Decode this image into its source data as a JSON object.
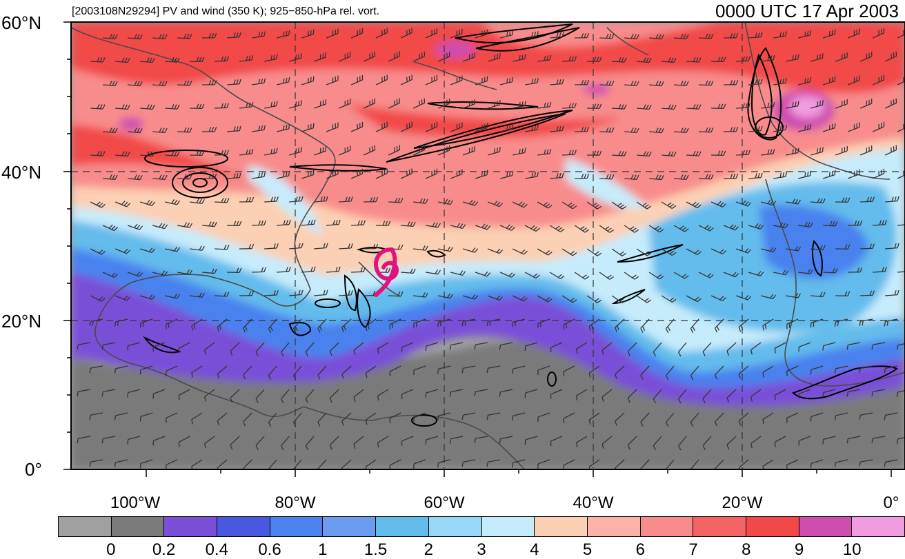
{
  "titles": {
    "left": "[2003108N29294] PV and wind (350 K); 925−850-hPa rel. vort.",
    "right": "0000 UTC 17 Apr 2003"
  },
  "axes": {
    "lat_labels": [
      "60°N",
      "40°N",
      "20°N",
      "0°"
    ],
    "lon_labels": [
      "100°W",
      "80°W",
      "60°W",
      "40°W",
      "20°W",
      "0°"
    ]
  },
  "colorbar": {
    "labels": [
      "0",
      "0.2",
      "0.4",
      "0.6",
      "1",
      "1.5",
      "2",
      "3",
      "4",
      "5",
      "6",
      "7",
      "8",
      "9",
      "10"
    ],
    "colors": [
      "#a0a0a0",
      "#7a7a7a",
      "#7a50d8",
      "#4858e0",
      "#4a82ee",
      "#6a9cf0",
      "#64bcec",
      "#96d8f6",
      "#c6ecfc",
      "#fcd0b4",
      "#fcb2a8",
      "#f88c8c",
      "#f46464",
      "#f24848",
      "#ce4eb0",
      "#f29ce0"
    ]
  },
  "map": {
    "palette": {
      "gray_light": "#a0a0a0",
      "gray_dark": "#7a7a7a",
      "purple": "#7a50d8",
      "blue": "#4a82ee",
      "sky": "#64bcec",
      "pale_blue": "#c6ecfc",
      "peach": "#fcd0b4",
      "salmon": "#f88c8c",
      "red": "#f24848",
      "magenta": "#ce4eb0",
      "pink": "#f29ce0",
      "track_color": "#e0147c"
    },
    "storm_marker_icon": "tropical-storm-symbol-icon"
  }
}
